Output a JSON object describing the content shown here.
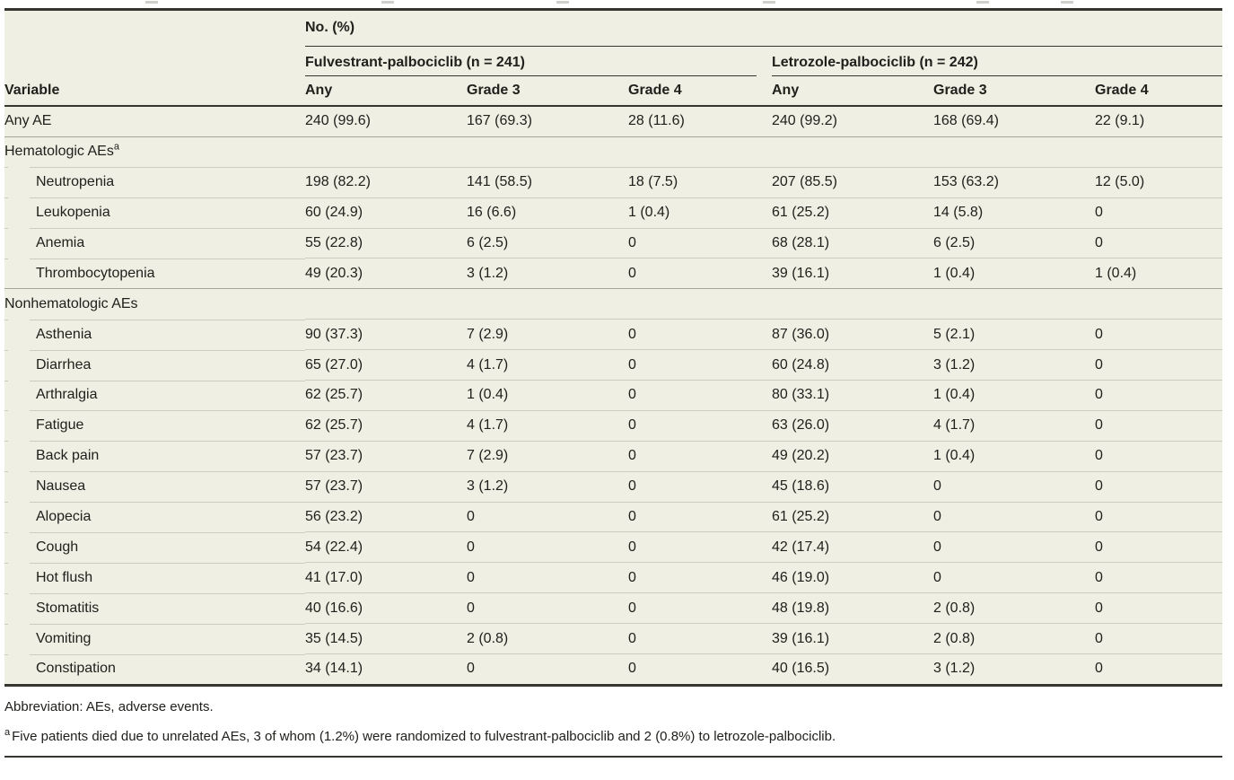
{
  "table": {
    "spanner": "No. (%)",
    "col_header_left": "Variable",
    "groups": [
      {
        "label": "Fulvestrant-palbociclib (n = 241)",
        "columns": [
          "Any",
          "Grade 3",
          "Grade 4"
        ]
      },
      {
        "label": "Letrozole-palbociclib (n = 242)",
        "columns": [
          "Any",
          "Grade 3",
          "Grade 4"
        ]
      }
    ],
    "rows": [
      {
        "type": "data",
        "indent": false,
        "label": "Any AE",
        "values": [
          "240 (99.6)",
          "167 (69.3)",
          "28 (11.6)",
          "240 (99.2)",
          "168 (69.4)",
          "22 (9.1)"
        ]
      },
      {
        "type": "section",
        "label": "Hematologic AEs",
        "sup": "a"
      },
      {
        "type": "data",
        "indent": true,
        "label": "Neutropenia",
        "values": [
          "198 (82.2)",
          "141 (58.5)",
          "18 (7.5)",
          "207 (85.5)",
          "153 (63.2)",
          "12 (5.0)"
        ]
      },
      {
        "type": "data",
        "indent": true,
        "label": "Leukopenia",
        "values": [
          "60 (24.9)",
          "16 (6.6)",
          "1 (0.4)",
          "61 (25.2)",
          "14 (5.8)",
          "0"
        ]
      },
      {
        "type": "data",
        "indent": true,
        "label": "Anemia",
        "values": [
          "55 (22.8)",
          "6 (2.5)",
          "0",
          "68 (28.1)",
          "6 (2.5)",
          "0"
        ]
      },
      {
        "type": "data",
        "indent": true,
        "label": "Thrombocytopenia",
        "values": [
          "49 (20.3)",
          "3 (1.2)",
          "0",
          "39 (16.1)",
          "1 (0.4)",
          "1 (0.4)"
        ]
      },
      {
        "type": "section",
        "label": "Nonhematologic AEs"
      },
      {
        "type": "data",
        "indent": true,
        "label": "Asthenia",
        "values": [
          "90 (37.3)",
          "7 (2.9)",
          "0",
          "87 (36.0)",
          "5 (2.1)",
          "0"
        ]
      },
      {
        "type": "data",
        "indent": true,
        "label": "Diarrhea",
        "values": [
          "65 (27.0)",
          "4 (1.7)",
          "0",
          "60 (24.8)",
          "3 (1.2)",
          "0"
        ]
      },
      {
        "type": "data",
        "indent": true,
        "label": "Arthralgia",
        "values": [
          "62 (25.7)",
          "1 (0.4)",
          "0",
          "80 (33.1)",
          "1 (0.4)",
          "0"
        ]
      },
      {
        "type": "data",
        "indent": true,
        "label": "Fatigue",
        "values": [
          "62 (25.7)",
          "4 (1.7)",
          "0",
          "63 (26.0)",
          "4 (1.7)",
          "0"
        ]
      },
      {
        "type": "data",
        "indent": true,
        "label": "Back pain",
        "values": [
          "57 (23.7)",
          "7 (2.9)",
          "0",
          "49 (20.2)",
          "1 (0.4)",
          "0"
        ]
      },
      {
        "type": "data",
        "indent": true,
        "label": "Nausea",
        "values": [
          "57 (23.7)",
          "3 (1.2)",
          "0",
          "45 (18.6)",
          "0",
          "0"
        ]
      },
      {
        "type": "data",
        "indent": true,
        "label": "Alopecia",
        "values": [
          "56 (23.2)",
          "0",
          "0",
          "61 (25.2)",
          "0",
          "0"
        ]
      },
      {
        "type": "data",
        "indent": true,
        "label": "Cough",
        "values": [
          "54 (22.4)",
          "0",
          "0",
          "42 (17.4)",
          "0",
          "0"
        ]
      },
      {
        "type": "data",
        "indent": true,
        "label": "Hot flush",
        "values": [
          "41 (17.0)",
          "0",
          "0",
          "46 (19.0)",
          "0",
          "0"
        ]
      },
      {
        "type": "data",
        "indent": true,
        "label": "Stomatitis",
        "values": [
          "40 (16.6)",
          "0",
          "0",
          "48 (19.8)",
          "2 (0.8)",
          "0"
        ]
      },
      {
        "type": "data",
        "indent": true,
        "label": "Vomiting",
        "values": [
          "35 (14.5)",
          "2 (0.8)",
          "0",
          "39 (16.1)",
          "2 (0.8)",
          "0"
        ]
      },
      {
        "type": "data",
        "indent": true,
        "label": "Constipation",
        "values": [
          "34 (14.1)",
          "0",
          "0",
          "40 (16.5)",
          "3 (1.2)",
          "0"
        ]
      }
    ]
  },
  "footnotes": {
    "abbreviation": "Abbreviation: AEs, adverse events.",
    "a_marker": "a",
    "a_text": "Five patients died due to unrelated AEs, 3 of whom (1.2%) were randomized to fulvestrant-palbociclib and 2 (0.8%) to letrozole-palbociclib."
  },
  "colors": {
    "table_background": "#f0efe4",
    "dark_rule": "#363530",
    "section_divider": "#a6a59a",
    "row_divider": "#cdccbf",
    "text": "#21201c",
    "page_background": "#ffffff"
  }
}
